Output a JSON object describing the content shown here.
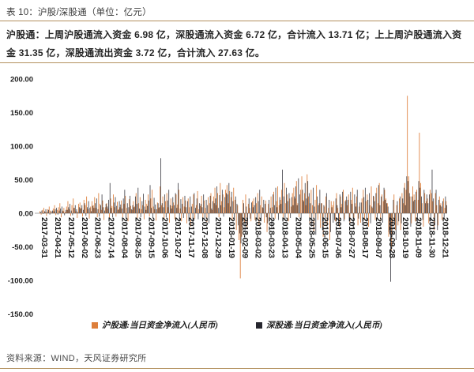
{
  "header": {
    "title": "表 10：沪股/深股通（单位：亿元）"
  },
  "summary": {
    "text": "沪股通：上周沪股通流入资金 6.98 亿，深股通流入资金 6.72 亿，合计流入 13.71 亿；上上周沪股通流入资金 31.35 亿，深股通流出资金 3.72 亿，合计流入 27.63 亿。"
  },
  "footer": {
    "source": "资料来源：WIND，天风证券研究所"
  },
  "chart_data": {
    "type": "bar",
    "unit": "亿元",
    "grid": false,
    "legend_position": "bottom",
    "ylim": [
      -150,
      200
    ],
    "y_ticks": {
      "labels": [
        "200.00",
        "150.00",
        "100.00",
        "50.00",
        "0.00",
        "-50.00",
        "-100.00",
        "-150.00"
      ],
      "values": [
        200,
        150,
        100,
        50,
        0,
        -50,
        -100,
        -150
      ]
    },
    "x_tick_labels": [
      "2017-03-31",
      "2017-04-21",
      "2017-05-12",
      "2017-06-02",
      "2017-06-23",
      "2017-07-14",
      "2017-08-04",
      "2017-08-25",
      "2017-09-15",
      "2017-10-06",
      "2017-10-27",
      "2017-11-17",
      "2017-12-08",
      "2017-12-29",
      "2018-01-19",
      "2018-02-09",
      "2018-03-02",
      "2018-03-23",
      "2018-04-13",
      "2018-05-04",
      "2018-05-25",
      "2018-06-15",
      "2018-07-06",
      "2018-07-27",
      "2018-08-17",
      "2018-09-07",
      "2018-09-28",
      "2018-10-19",
      "2018-11-09",
      "2018-11-30",
      "2018-12-21"
    ],
    "points_per_tick": 10,
    "series": [
      {
        "name": "沪股通:当日资金净流入(人民币)",
        "color": "#dd7e3a",
        "values": [
          3,
          -2,
          5,
          8,
          2,
          -4,
          6,
          10,
          4,
          1,
          7,
          12,
          -3,
          5,
          9,
          15,
          -6,
          4,
          8,
          2,
          10,
          18,
          6,
          -4,
          12,
          22,
          8,
          3,
          -7,
          14,
          16,
          8,
          -5,
          20,
          12,
          25,
          6,
          -8,
          10,
          18,
          12,
          24,
          8,
          -6,
          30,
          14,
          5,
          19,
          -10,
          9,
          15,
          7,
          -8,
          22,
          11,
          28,
          9,
          -5,
          17,
          6,
          9,
          19,
          -6,
          14,
          26,
          8,
          -12,
          21,
          11,
          5,
          18,
          10,
          30,
          -7,
          15,
          24,
          6,
          12,
          -9,
          20,
          14,
          28,
          -5,
          22,
          35,
          10,
          6,
          -11,
          16,
          8,
          40,
          12,
          25,
          -8,
          18,
          30,
          9,
          -14,
          22,
          11,
          16,
          -9,
          28,
          13,
          35,
          7,
          -12,
          24,
          10,
          19,
          -15,
          22,
          9,
          -20,
          14,
          28,
          -8,
          12,
          33,
          6,
          11,
          26,
          -7,
          19,
          8,
          -13,
          24,
          15,
          30,
          5,
          25,
          38,
          12,
          30,
          -6,
          45,
          18,
          28,
          9,
          35,
          42,
          15,
          33,
          24,
          -10,
          38,
          20,
          -25,
          12,
          -40,
          -97,
          -35,
          20,
          -15,
          28,
          -22,
          14,
          8,
          -12,
          18,
          22,
          -10,
          15,
          30,
          -18,
          12,
          25,
          8,
          -14,
          19,
          -28,
          14,
          -12,
          25,
          9,
          32,
          -8,
          18,
          40,
          12,
          20,
          35,
          -8,
          45,
          15,
          28,
          -12,
          22,
          10,
          30,
          38,
          22,
          48,
          15,
          -6,
          35,
          55,
          20,
          30,
          12,
          58,
          25,
          -15,
          35,
          12,
          -28,
          20,
          42,
          -10,
          15,
          -22,
          15,
          -35,
          10,
          25,
          -18,
          8,
          -40,
          18,
          12,
          18,
          -12,
          30,
          8,
          -20,
          25,
          14,
          35,
          -9,
          20,
          12,
          28,
          -15,
          20,
          38,
          -8,
          15,
          25,
          -18,
          10,
          -14,
          22,
          35,
          -10,
          18,
          28,
          -20,
          12,
          40,
          8,
          25,
          -10,
          38,
          15,
          45,
          -12,
          28,
          18,
          35,
          22,
          15,
          -35,
          -20,
          -55,
          -15,
          28,
          -25,
          12,
          -18,
          22,
          -25,
          30,
          15,
          45,
          35,
          175,
          55,
          25,
          -15,
          40,
          28,
          -12,
          35,
          20,
          120,
          45,
          15,
          -20,
          30,
          18,
          22,
          -15,
          35,
          30,
          18,
          -25,
          30,
          12,
          -18,
          25,
          15,
          -10,
          22,
          8,
          18
        ]
      },
      {
        "name": "深股通:当日资金净流入(人民币)",
        "color": "#45454c",
        "values": [
          2,
          4,
          -1,
          3,
          6,
          2,
          5,
          -2,
          3,
          4,
          3,
          6,
          8,
          -2,
          4,
          7,
          10,
          3,
          -3,
          5,
          5,
          9,
          14,
          4,
          -3,
          8,
          12,
          6,
          2,
          9,
          7,
          12,
          5,
          15,
          -4,
          9,
          18,
          8,
          3,
          11,
          8,
          15,
          22,
          6,
          -5,
          12,
          28,
          9,
          4,
          14,
          10,
          20,
          45,
          8,
          -6,
          16,
          24,
          11,
          5,
          18,
          13,
          7,
          22,
          35,
          -8,
          15,
          9,
          26,
          6,
          12,
          9,
          25,
          14,
          38,
          7,
          -6,
          18,
          29,
          10,
          5,
          11,
          19,
          42,
          8,
          -7,
          23,
          13,
          6,
          15,
          9,
          82,
          15,
          9,
          28,
          -6,
          19,
          35,
          12,
          7,
          24,
          12,
          30,
          8,
          45,
          -10,
          21,
          14,
          -7,
          26,
          9,
          18,
          -12,
          25,
          10,
          -16,
          30,
          8,
          22,
          -9,
          15,
          14,
          9,
          28,
          -8,
          20,
          12,
          -15,
          26,
          7,
          18,
          15,
          22,
          40,
          8,
          27,
          12,
          35,
          -5,
          24,
          30,
          28,
          45,
          10,
          32,
          18,
          -8,
          25,
          14,
          -18,
          -30,
          -45,
          -20,
          15,
          -28,
          10,
          -15,
          22,
          -8,
          16,
          9,
          12,
          24,
          -8,
          18,
          35,
          -12,
          9,
          20,
          14,
          -6,
          -15,
          20,
          8,
          -22,
          28,
          12,
          38,
          9,
          -10,
          24,
          14,
          65,
          25,
          -9,
          38,
          18,
          30,
          -7,
          24,
          12,
          25,
          40,
          12,
          52,
          28,
          -8,
          35,
          18,
          45,
          22,
          48,
          30,
          15,
          -20,
          38,
          10,
          -32,
          25,
          12,
          35,
          15,
          -25,
          12,
          -15,
          30,
          -10,
          20,
          -28,
          9,
          -14,
          -10,
          22,
          12,
          -18,
          28,
          9,
          32,
          -12,
          18,
          25,
          20,
          -12,
          32,
          14,
          -22,
          28,
          10,
          35,
          -8,
          16,
          16,
          -18,
          24,
          38,
          -12,
          20,
          30,
          -15,
          10,
          26,
          18,
          30,
          -8,
          42,
          12,
          25,
          -14,
          38,
          20,
          15,
          10,
          -28,
          -102,
          -35,
          20,
          -15,
          -40,
          18,
          -12,
          25,
          -15,
          22,
          38,
          12,
          55,
          48,
          30,
          -20,
          25,
          18,
          20,
          32,
          -15,
          48,
          38,
          25,
          -10,
          35,
          15,
          28,
          15,
          28,
          -12,
          65,
          22,
          -18,
          35,
          -25,
          20,
          12,
          10,
          18,
          -8,
          25,
          12
        ]
      }
    ]
  }
}
